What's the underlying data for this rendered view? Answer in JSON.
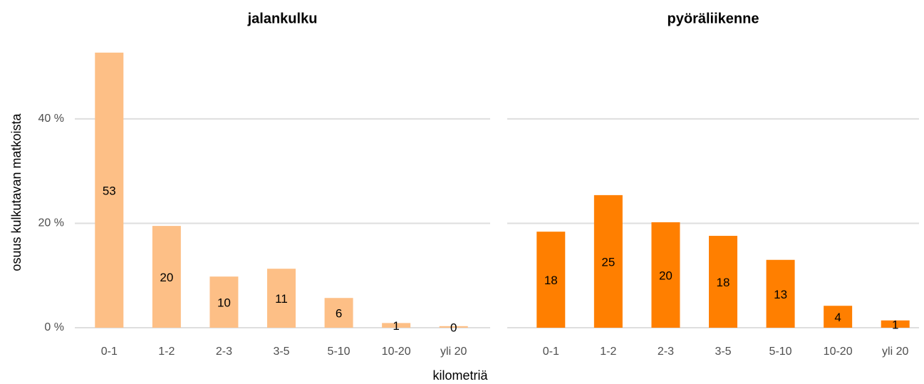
{
  "chart_data": [
    {
      "type": "bar",
      "title": "jalankulku",
      "color": "#fdbf86",
      "categories": [
        "0-1",
        "1-2",
        "2-3",
        "3-5",
        "5-10",
        "10-20",
        "yli 20"
      ],
      "values": [
        52.7,
        19.5,
        9.8,
        11.3,
        5.7,
        0.9,
        0.3
      ],
      "value_labels": [
        "53",
        "20",
        "10",
        "11",
        "6",
        "1",
        "0"
      ],
      "ylim": [
        0,
        55
      ],
      "yticks": [
        {
          "value": 0,
          "label": "0 %"
        },
        {
          "value": 20,
          "label": "20 %"
        },
        {
          "value": 40,
          "label": "40 %"
        }
      ],
      "grid": true
    },
    {
      "type": "bar",
      "title": "pyöräliikenne",
      "color": "#ff7f00",
      "categories": [
        "0-1",
        "1-2",
        "2-3",
        "3-5",
        "5-10",
        "10-20",
        "yli 20"
      ],
      "values": [
        18.4,
        25.4,
        20.2,
        17.6,
        13.0,
        4.2,
        1.4
      ],
      "value_labels": [
        "18",
        "25",
        "20",
        "18",
        "13",
        "4",
        "1"
      ],
      "ylim": [
        0,
        55
      ],
      "yticks": [
        0,
        20,
        40
      ],
      "grid": true
    }
  ],
  "shared": {
    "xlabel": "kilometriä",
    "ylabel": "osuus kulkutavan matkoista"
  }
}
